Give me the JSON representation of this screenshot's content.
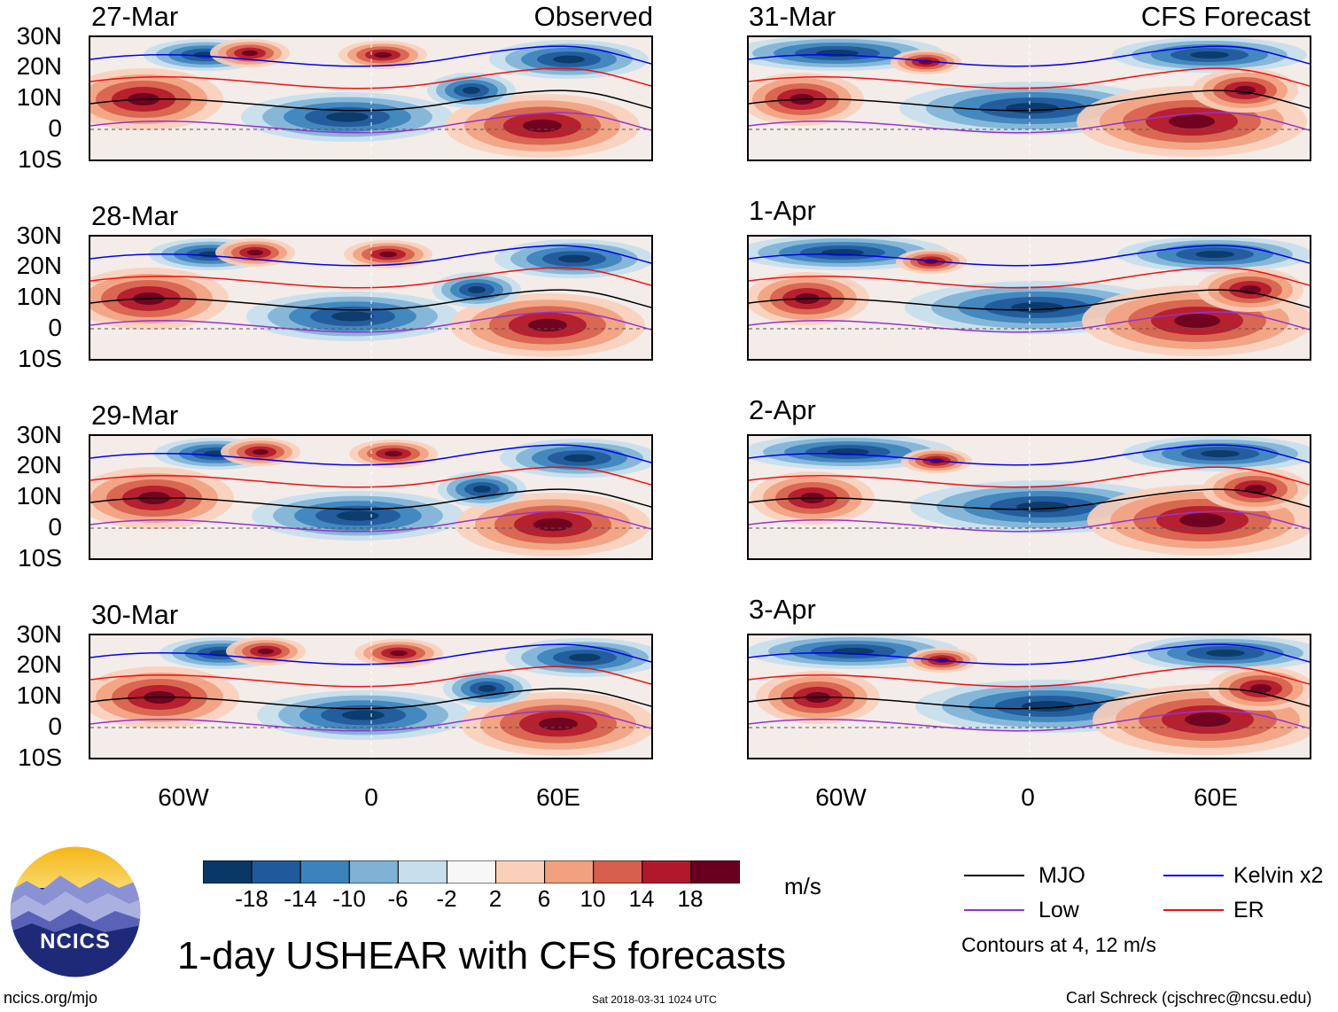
{
  "headers": {
    "observed": "Observed",
    "forecast": "CFS Forecast"
  },
  "panels": {
    "p27mar": {
      "date": "27-Mar"
    },
    "p28mar": {
      "date": "28-Mar"
    },
    "p29mar": {
      "date": "29-Mar"
    },
    "p30mar": {
      "date": "30-Mar"
    },
    "p31mar": {
      "date": "31-Mar"
    },
    "p1apr": {
      "date": "1-Apr"
    },
    "p2apr": {
      "date": "2-Apr"
    },
    "p3apr": {
      "date": "3-Apr"
    }
  },
  "lat_labels": {
    "n30": "30N",
    "n20": "20N",
    "n10": "10N",
    "eq": "0",
    "s10": "10S"
  },
  "lon_labels": {
    "w60": "60W",
    "zero": "0",
    "e60": "60E"
  },
  "colorbar": {
    "labels": {
      "a": "-18",
      "b": "-14",
      "c": "-10",
      "d": "-6",
      "e": "-2",
      "f": "2",
      "g": "6",
      "h": "10",
      "i": "14",
      "j": "18"
    },
    "colors": [
      "#0a3866",
      "#21599a",
      "#3c83bb",
      "#7fb2d5",
      "#c7dfed",
      "#f7f7f7",
      "#fbd0bb",
      "#f1a17f",
      "#d6604d",
      "#b2182b",
      "#67001f"
    ],
    "units": "m/s"
  },
  "legend": {
    "mjo": {
      "label": "MJO",
      "color": "#000000"
    },
    "low": {
      "label": "Low",
      "color": "#9932cc"
    },
    "kelvin": {
      "label": "Kelvin x2",
      "color": "#0000ee"
    },
    "er": {
      "label": "ER",
      "color": "#ee1111"
    },
    "note": "Contours at 4, 12 m/s"
  },
  "logo": {
    "text": "NCICS"
  },
  "title": "1-day USHEAR with CFS forecasts",
  "footer": {
    "url": "ncics.org/mjo",
    "timestamp": "Sat 2018-03-31 1024 UTC",
    "credit": "Carl Schreck (cjschrec@ncsu.edu)"
  }
}
